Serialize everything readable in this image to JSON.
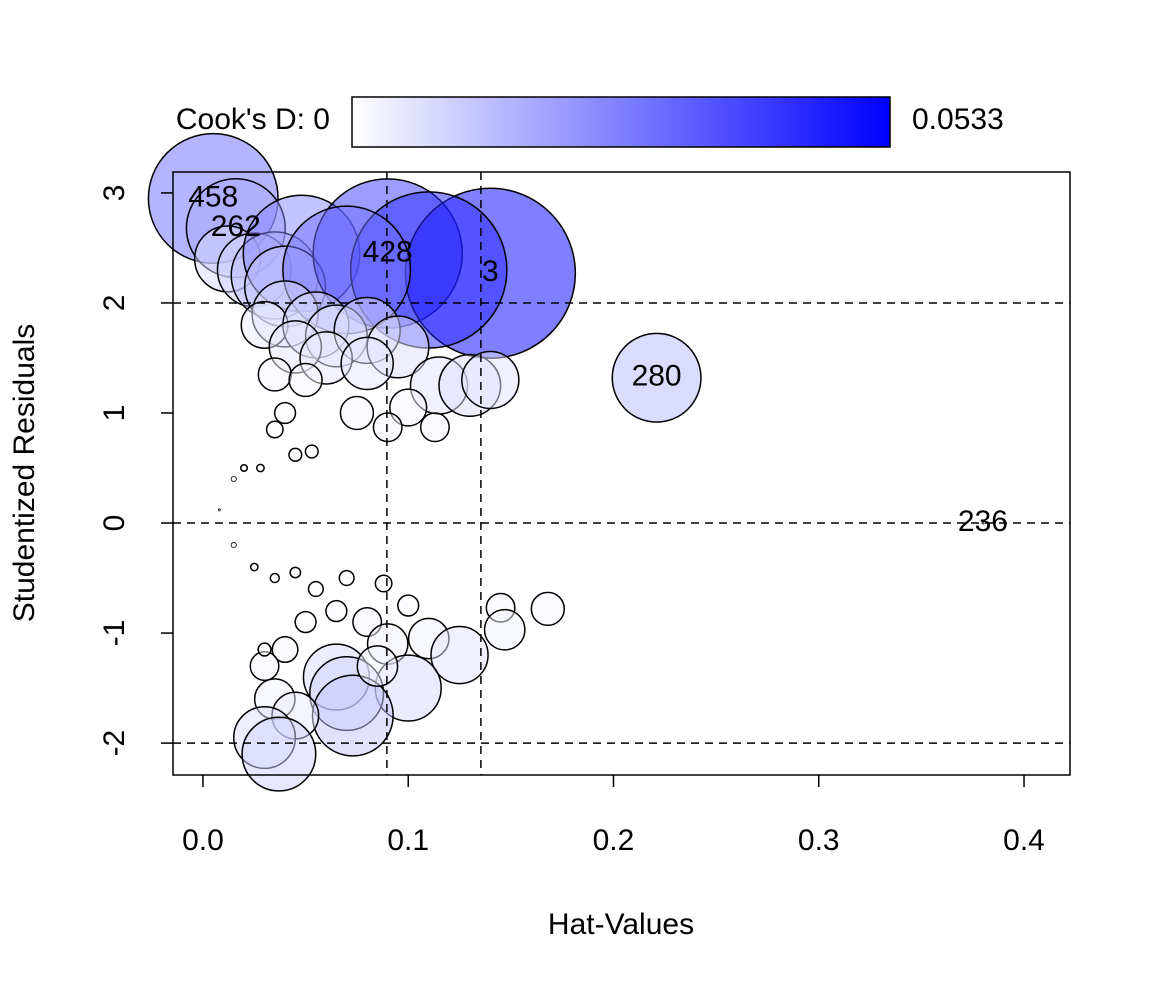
{
  "chart_data": {
    "type": "bubble",
    "xlabel": "Hat-Values",
    "ylabel": "Studentized Residuals",
    "xlim": [
      -0.0146,
      0.4224
    ],
    "ylim": [
      -2.29,
      3.19
    ],
    "xticks": [
      {
        "value": 0,
        "label": "0.0"
      },
      0.1,
      0.2,
      0.3,
      0.4
    ],
    "yticks": [
      -2,
      -1,
      0,
      1,
      2,
      3
    ],
    "hlines": [
      -2,
      0,
      2
    ],
    "vlines": [
      0.0896,
      0.1354
    ],
    "colorbar": {
      "min_label": "Cook's D: 0",
      "max_label": "0.0533",
      "range": [
        0,
        0.0533
      ],
      "colors": [
        "#ffffff",
        "#0000ff"
      ]
    },
    "x": [
      0.005,
      0.016,
      0.012,
      0.025,
      0.035,
      0.048,
      0.04,
      0.09,
      0.14,
      0.11,
      0.07,
      0.04,
      0.03,
      0.055,
      0.065,
      0.08,
      0.095,
      0.045,
      0.06,
      0.08,
      0.035,
      0.05,
      0.115,
      0.13,
      0.14,
      0.221,
      0.075,
      0.1,
      0.113,
      0.09,
      0.04,
      0.035,
      0.045,
      0.053,
      0.02,
      0.015,
      0.028,
      0.008,
      0.38,
      0.015,
      0.025,
      0.035,
      0.045,
      0.055,
      0.07,
      0.088,
      0.065,
      0.1,
      0.145,
      0.168,
      0.147,
      0.05,
      0.08,
      0.04,
      0.03,
      0.09,
      0.11,
      0.125,
      0.1,
      0.065,
      0.07,
      0.073,
      0.035,
      0.045,
      0.03,
      0.037,
      0.085,
      0.03
    ],
    "y": [
      2.95,
      2.68,
      2.4,
      2.3,
      2.25,
      2.45,
      2.15,
      2.45,
      2.27,
      2.3,
      2.3,
      1.9,
      1.8,
      1.8,
      1.7,
      1.75,
      1.6,
      1.6,
      1.5,
      1.45,
      1.35,
      1.3,
      1.25,
      1.25,
      1.3,
      1.32,
      1.0,
      1.05,
      0.87,
      0.87,
      1.0,
      0.85,
      0.62,
      0.65,
      0.5,
      0.4,
      0.5,
      0.12,
      0.0,
      -0.2,
      -0.4,
      -0.5,
      -0.45,
      -0.6,
      -0.5,
      -0.55,
      -0.8,
      -0.75,
      -0.77,
      -0.78,
      -0.97,
      -0.9,
      -0.9,
      -1.15,
      -1.3,
      -1.1,
      -1.05,
      -1.2,
      -1.5,
      -1.4,
      -1.55,
      -1.75,
      -1.6,
      -1.75,
      -1.95,
      -2.1,
      -1.3,
      -1.15
    ],
    "sizes": [
      0.031,
      0.018,
      0.008,
      0.01,
      0.014,
      0.025,
      0.012,
      0.041,
      0.0533,
      0.045,
      0.03,
      0.008,
      0.004,
      0.008,
      0.007,
      0.008,
      0.007,
      0.005,
      0.005,
      0.005,
      0.002,
      0.002,
      0.006,
      0.007,
      0.006,
      0.0145,
      0.002,
      0.0025,
      0.0015,
      0.0015,
      0.0008,
      0.0005,
      0.0003,
      0.0003,
      8e-05,
      5e-05,
      0.0001,
      5e-06,
      0.0,
      5e-05,
      0.0001,
      0.00015,
      0.0002,
      0.0004,
      0.0004,
      0.0005,
      0.0008,
      0.0008,
      0.0015,
      0.002,
      0.003,
      0.0008,
      0.0015,
      0.0012,
      0.0015,
      0.003,
      0.003,
      0.006,
      0.008,
      0.008,
      0.01,
      0.012,
      0.003,
      0.004,
      0.007,
      0.01,
      0.003,
      0.0003
    ],
    "labels": [
      "458",
      "262",
      null,
      null,
      null,
      null,
      null,
      "428",
      "3",
      null,
      null,
      null,
      null,
      null,
      null,
      null,
      null,
      null,
      null,
      null,
      null,
      null,
      null,
      null,
      null,
      "280",
      null,
      null,
      null,
      null,
      null,
      null,
      null,
      null,
      null,
      null,
      null,
      null,
      "236",
      null,
      null,
      null,
      null,
      null,
      null,
      null,
      null,
      null,
      null,
      null,
      null,
      null,
      null,
      null,
      null,
      null,
      null,
      null,
      null,
      null,
      null,
      null,
      null,
      null,
      null,
      null,
      null,
      null
    ]
  }
}
